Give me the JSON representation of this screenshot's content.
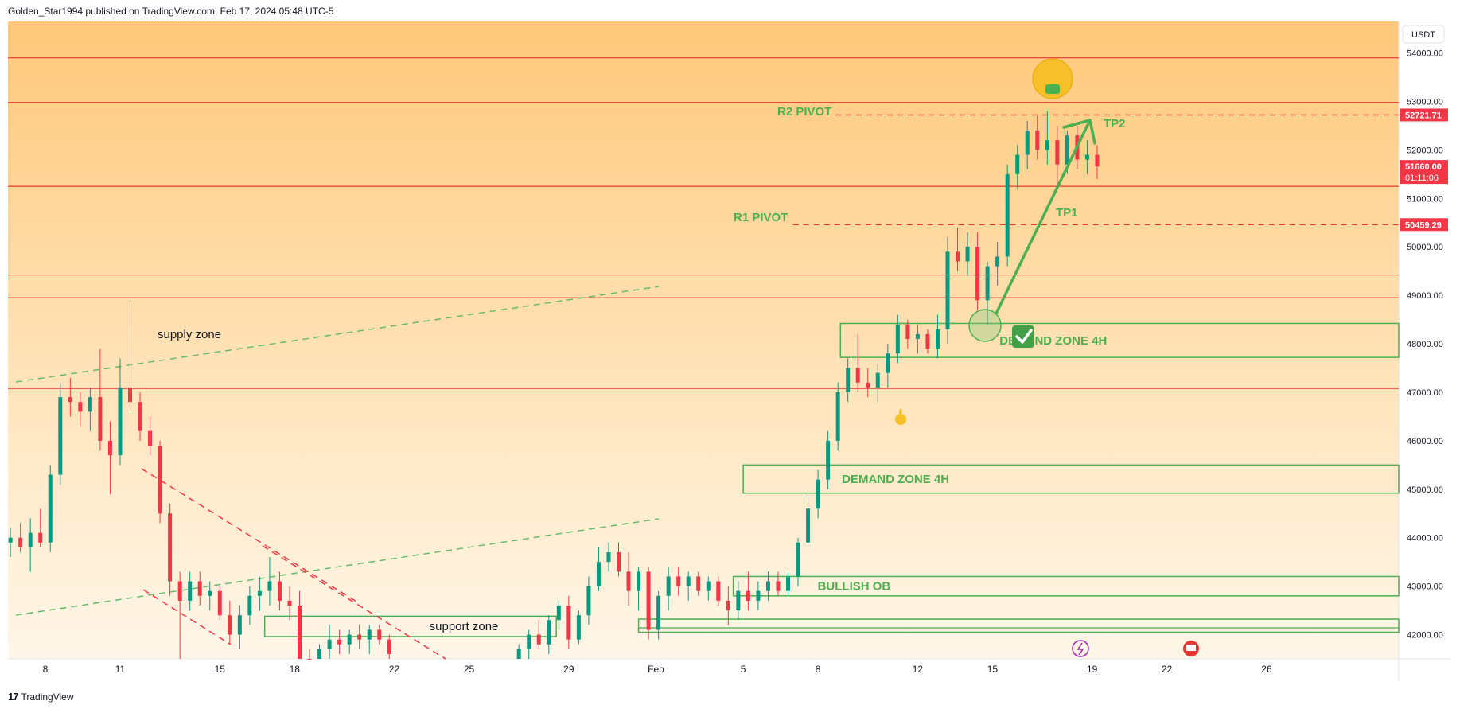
{
  "header": {
    "text": "Golden_Star1994 published on TradingView.com, Feb 17, 2024 05:48 UTC-5"
  },
  "footer": {
    "logo_text": "17",
    "brand": "TradingView"
  },
  "colors": {
    "bg_top": "#ffc87a",
    "bg_bottom": "#fff6e8",
    "up": "#089981",
    "down": "#f23645",
    "level": "#e53935",
    "zone": "#4caf50",
    "pivot": "#e53935",
    "fib_green": "#66bb6a"
  },
  "chart_data": {
    "type": "candlestick",
    "symbol_currency": "USDT",
    "y_ticks": [
      "54000.00",
      "53000.00",
      "52000.00",
      "51000.00",
      "50000.00",
      "49000.00",
      "48000.00",
      "47000.00",
      "46000.00",
      "45000.00",
      "44000.00",
      "43000.00",
      "42000.00"
    ],
    "y_tick_values": [
      54000,
      53000,
      52000,
      51000,
      50000,
      49000,
      48000,
      47000,
      46000,
      45000,
      44000,
      43000,
      42000
    ],
    "ylim": [
      41500,
      54650
    ],
    "x_ticks": [
      "8",
      "11",
      "15",
      "18",
      "22",
      "25",
      "29",
      "Feb",
      "5",
      "8",
      "12",
      "15",
      "19",
      "22",
      "26"
    ],
    "x_tick_days": [
      0,
      3,
      7,
      10,
      14,
      17,
      21,
      24.5,
      28,
      31,
      35,
      38,
      42,
      45,
      49
    ],
    "xlim_days": [
      -1.5,
      54.3
    ],
    "price_tags": [
      {
        "label": "52721.71",
        "value": 52721.71,
        "color": "#f23645"
      },
      {
        "label": "51660.00",
        "sub": "01:11:06",
        "value": 51660.0,
        "color": "#f23645"
      },
      {
        "label": "50459.29",
        "value": 50459.29,
        "color": "#f23645"
      }
    ],
    "horizontal_levels": [
      53900,
      52980,
      51250,
      49420,
      48950,
      47080
    ],
    "pivots": [
      {
        "label": "R2 PIVOT",
        "value": 52721.71,
        "from_day": 31.7
      },
      {
        "label": "R1 PIVOT",
        "value": 50459.29,
        "from_day": 30.0
      }
    ],
    "zones": [
      {
        "label": "DEMAND ZONE 4H",
        "from_day": 31.9,
        "top": 48420,
        "bottom": 47720
      },
      {
        "label": "DEMAND ZONE 4H",
        "from_day": 28.0,
        "top": 45500,
        "bottom": 44920
      },
      {
        "label": "BULLISH OB",
        "from_day": 27.6,
        "top": 43200,
        "bottom": 42800
      },
      {
        "label": "support zone",
        "from_day": 8.8,
        "to_day": 20.5,
        "top": 42380,
        "bottom": 41960
      },
      {
        "label": "",
        "from_day": 23.8,
        "top": 42320,
        "bottom": 42050
      }
    ],
    "zone_labels": [
      "DEMAND ZONE 4H",
      "DEMAND ZONE 4H",
      "BULLISH OB",
      "support zone",
      "supply zone"
    ],
    "targets": [
      "TP1",
      "TP2"
    ],
    "candles": [
      {
        "d": -1.4,
        "o": 43900,
        "h": 44200,
        "l": 43600,
        "c": 44000
      },
      {
        "d": -1.0,
        "o": 44000,
        "h": 44300,
        "l": 43700,
        "c": 43800
      },
      {
        "d": -0.6,
        "o": 43800,
        "h": 44400,
        "l": 43300,
        "c": 44100
      },
      {
        "d": -0.2,
        "o": 44100,
        "h": 44600,
        "l": 43800,
        "c": 43900
      },
      {
        "d": 0.2,
        "o": 43900,
        "h": 45500,
        "l": 43700,
        "c": 45300
      },
      {
        "d": 0.6,
        "o": 45300,
        "h": 47200,
        "l": 45100,
        "c": 46900
      },
      {
        "d": 1.0,
        "o": 46900,
        "h": 47300,
        "l": 46500,
        "c": 46800
      },
      {
        "d": 1.4,
        "o": 46800,
        "h": 47000,
        "l": 46300,
        "c": 46600
      },
      {
        "d": 1.8,
        "o": 46600,
        "h": 47100,
        "l": 46200,
        "c": 46900
      },
      {
        "d": 2.2,
        "o": 46900,
        "h": 47900,
        "l": 45800,
        "c": 46000
      },
      {
        "d": 2.6,
        "o": 46000,
        "h": 46400,
        "l": 44900,
        "c": 45700
      },
      {
        "d": 3.0,
        "o": 45700,
        "h": 47700,
        "l": 45500,
        "c": 47100
      },
      {
        "d": 3.4,
        "o": 47100,
        "h": 48900,
        "l": 46600,
        "c": 46800
      },
      {
        "d": 3.8,
        "o": 46800,
        "h": 47000,
        "l": 46000,
        "c": 46200
      },
      {
        "d": 4.2,
        "o": 46200,
        "h": 46500,
        "l": 45700,
        "c": 45900
      },
      {
        "d": 4.6,
        "o": 45900,
        "h": 46000,
        "l": 44300,
        "c": 44500
      },
      {
        "d": 5.0,
        "o": 44500,
        "h": 44700,
        "l": 42800,
        "c": 43100
      },
      {
        "d": 5.4,
        "o": 43100,
        "h": 43300,
        "l": 41500,
        "c": 42700
      },
      {
        "d": 5.8,
        "o": 42700,
        "h": 43300,
        "l": 42500,
        "c": 43100
      },
      {
        "d": 6.2,
        "o": 43100,
        "h": 43300,
        "l": 42600,
        "c": 42800
      },
      {
        "d": 6.6,
        "o": 42800,
        "h": 43100,
        "l": 42500,
        "c": 42900
      },
      {
        "d": 7.0,
        "o": 42900,
        "h": 43000,
        "l": 42300,
        "c": 42400
      },
      {
        "d": 7.4,
        "o": 42400,
        "h": 42700,
        "l": 41800,
        "c": 42000
      },
      {
        "d": 7.8,
        "o": 42000,
        "h": 42600,
        "l": 41700,
        "c": 42400
      },
      {
        "d": 8.2,
        "o": 42400,
        "h": 43000,
        "l": 42200,
        "c": 42800
      },
      {
        "d": 8.6,
        "o": 42800,
        "h": 43200,
        "l": 42500,
        "c": 42900
      },
      {
        "d": 9.0,
        "o": 42900,
        "h": 43600,
        "l": 42600,
        "c": 43100
      },
      {
        "d": 9.4,
        "o": 43100,
        "h": 43300,
        "l": 42500,
        "c": 42700
      },
      {
        "d": 9.8,
        "o": 42700,
        "h": 43000,
        "l": 42300,
        "c": 42600
      },
      {
        "d": 10.2,
        "o": 42600,
        "h": 42900,
        "l": 41300,
        "c": 41500
      },
      {
        "d": 10.6,
        "o": 41500,
        "h": 41700,
        "l": 41300,
        "c": 41400
      },
      {
        "d": 11.0,
        "o": 41400,
        "h": 41800,
        "l": 41300,
        "c": 41700
      },
      {
        "d": 11.4,
        "o": 41700,
        "h": 42200,
        "l": 41500,
        "c": 41900
      },
      {
        "d": 11.8,
        "o": 41900,
        "h": 42100,
        "l": 41600,
        "c": 41800
      },
      {
        "d": 12.2,
        "o": 41800,
        "h": 42100,
        "l": 41600,
        "c": 42000
      },
      {
        "d": 12.6,
        "o": 42000,
        "h": 42200,
        "l": 41700,
        "c": 41900
      },
      {
        "d": 13.0,
        "o": 41900,
        "h": 42200,
        "l": 41600,
        "c": 42100
      },
      {
        "d": 13.4,
        "o": 42100,
        "h": 42200,
        "l": 41800,
        "c": 41900
      },
      {
        "d": 13.8,
        "o": 41900,
        "h": 42000,
        "l": 41500,
        "c": 41600
      },
      {
        "d": 19.0,
        "o": 41500,
        "h": 41800,
        "l": 41400,
        "c": 41700
      },
      {
        "d": 19.4,
        "o": 41700,
        "h": 42100,
        "l": 41500,
        "c": 42000
      },
      {
        "d": 19.8,
        "o": 42000,
        "h": 42300,
        "l": 41700,
        "c": 41800
      },
      {
        "d": 20.2,
        "o": 41800,
        "h": 42400,
        "l": 41600,
        "c": 42300
      },
      {
        "d": 20.6,
        "o": 42300,
        "h": 42700,
        "l": 42100,
        "c": 42600
      },
      {
        "d": 21.0,
        "o": 42600,
        "h": 42800,
        "l": 41700,
        "c": 41900
      },
      {
        "d": 21.4,
        "o": 41900,
        "h": 42500,
        "l": 41800,
        "c": 42400
      },
      {
        "d": 21.8,
        "o": 42400,
        "h": 43200,
        "l": 42200,
        "c": 43000
      },
      {
        "d": 22.2,
        "o": 43000,
        "h": 43800,
        "l": 42900,
        "c": 43500
      },
      {
        "d": 22.6,
        "o": 43500,
        "h": 43900,
        "l": 43300,
        "c": 43700
      },
      {
        "d": 23.0,
        "o": 43700,
        "h": 43900,
        "l": 43200,
        "c": 43300
      },
      {
        "d": 23.4,
        "o": 43300,
        "h": 43700,
        "l": 42600,
        "c": 42900
      },
      {
        "d": 23.8,
        "o": 42900,
        "h": 43400,
        "l": 42500,
        "c": 43300
      },
      {
        "d": 24.2,
        "o": 43300,
        "h": 43400,
        "l": 41900,
        "c": 42100
      },
      {
        "d": 24.6,
        "o": 42100,
        "h": 42900,
        "l": 41900,
        "c": 42800
      },
      {
        "d": 25.0,
        "o": 42800,
        "h": 43400,
        "l": 42500,
        "c": 43200
      },
      {
        "d": 25.4,
        "o": 43200,
        "h": 43400,
        "l": 42800,
        "c": 43000
      },
      {
        "d": 25.8,
        "o": 43000,
        "h": 43300,
        "l": 42700,
        "c": 43200
      },
      {
        "d": 26.2,
        "o": 43200,
        "h": 43300,
        "l": 42800,
        "c": 42900
      },
      {
        "d": 26.6,
        "o": 42900,
        "h": 43200,
        "l": 42700,
        "c": 43100
      },
      {
        "d": 27.0,
        "o": 43100,
        "h": 43200,
        "l": 42600,
        "c": 42700
      },
      {
        "d": 27.4,
        "o": 42700,
        "h": 43000,
        "l": 42200,
        "c": 42500
      },
      {
        "d": 27.8,
        "o": 42500,
        "h": 43100,
        "l": 42300,
        "c": 42900
      },
      {
        "d": 28.2,
        "o": 42900,
        "h": 43300,
        "l": 42500,
        "c": 42700
      },
      {
        "d": 28.6,
        "o": 42700,
        "h": 43100,
        "l": 42500,
        "c": 42900
      },
      {
        "d": 29.0,
        "o": 42900,
        "h": 43300,
        "l": 42700,
        "c": 43100
      },
      {
        "d": 29.4,
        "o": 43100,
        "h": 43300,
        "l": 42800,
        "c": 42900
      },
      {
        "d": 29.8,
        "o": 42900,
        "h": 43300,
        "l": 42800,
        "c": 43200
      },
      {
        "d": 30.2,
        "o": 43200,
        "h": 44000,
        "l": 43000,
        "c": 43900
      },
      {
        "d": 30.6,
        "o": 43900,
        "h": 44900,
        "l": 43800,
        "c": 44600
      },
      {
        "d": 31.0,
        "o": 44600,
        "h": 45400,
        "l": 44400,
        "c": 45200
      },
      {
        "d": 31.4,
        "o": 45200,
        "h": 46200,
        "l": 45000,
        "c": 46000
      },
      {
        "d": 31.8,
        "o": 46000,
        "h": 47200,
        "l": 45800,
        "c": 47000
      },
      {
        "d": 32.2,
        "o": 47000,
        "h": 47700,
        "l": 46800,
        "c": 47500
      },
      {
        "d": 32.6,
        "o": 47500,
        "h": 48200,
        "l": 47000,
        "c": 47200
      },
      {
        "d": 33.0,
        "o": 47200,
        "h": 47500,
        "l": 46900,
        "c": 47100
      },
      {
        "d": 33.4,
        "o": 47100,
        "h": 47600,
        "l": 46800,
        "c": 47400
      },
      {
        "d": 33.8,
        "o": 47400,
        "h": 48000,
        "l": 47100,
        "c": 47800
      },
      {
        "d": 34.2,
        "o": 47800,
        "h": 48600,
        "l": 47600,
        "c": 48400
      },
      {
        "d": 34.6,
        "o": 48400,
        "h": 48500,
        "l": 47900,
        "c": 48100
      },
      {
        "d": 35.0,
        "o": 48100,
        "h": 48400,
        "l": 47800,
        "c": 48200
      },
      {
        "d": 35.4,
        "o": 48200,
        "h": 48300,
        "l": 47800,
        "c": 47900
      },
      {
        "d": 35.8,
        "o": 47900,
        "h": 48600,
        "l": 47700,
        "c": 48300
      },
      {
        "d": 36.2,
        "o": 48300,
        "h": 50200,
        "l": 48000,
        "c": 49900
      },
      {
        "d": 36.6,
        "o": 49900,
        "h": 50400,
        "l": 49500,
        "c": 49700
      },
      {
        "d": 37.0,
        "o": 49700,
        "h": 50300,
        "l": 49400,
        "c": 50000
      },
      {
        "d": 37.4,
        "o": 50000,
        "h": 50300,
        "l": 48700,
        "c": 48900
      },
      {
        "d": 37.8,
        "o": 48900,
        "h": 49700,
        "l": 48400,
        "c": 49600
      },
      {
        "d": 38.2,
        "o": 49600,
        "h": 50100,
        "l": 49200,
        "c": 49800
      },
      {
        "d": 38.6,
        "o": 49800,
        "h": 51700,
        "l": 49600,
        "c": 51500
      },
      {
        "d": 39.0,
        "o": 51500,
        "h": 52100,
        "l": 51200,
        "c": 51900
      },
      {
        "d": 39.4,
        "o": 51900,
        "h": 52600,
        "l": 51600,
        "c": 52400
      },
      {
        "d": 39.8,
        "o": 52400,
        "h": 52700,
        "l": 51800,
        "c": 52000
      },
      {
        "d": 40.2,
        "o": 52000,
        "h": 52800,
        "l": 51700,
        "c": 52200
      },
      {
        "d": 40.6,
        "o": 52200,
        "h": 52500,
        "l": 51300,
        "c": 51700
      },
      {
        "d": 41.0,
        "o": 51700,
        "h": 52400,
        "l": 51500,
        "c": 52300
      },
      {
        "d": 41.4,
        "o": 52300,
        "h": 52500,
        "l": 51600,
        "c": 51800
      },
      {
        "d": 41.8,
        "o": 51800,
        "h": 52200,
        "l": 51500,
        "c": 51900
      },
      {
        "d": 42.2,
        "o": 51900,
        "h": 52100,
        "l": 51400,
        "c": 51660
      }
    ]
  }
}
